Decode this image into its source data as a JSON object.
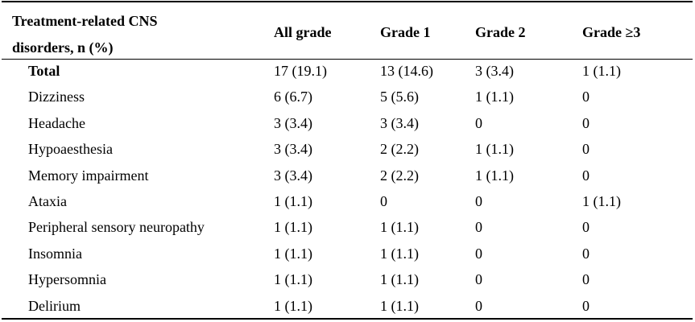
{
  "table": {
    "header": [
      "Treatment-related CNS disorders, n (%)",
      "All grade",
      "Grade 1",
      "Grade 2",
      "Grade ≥3"
    ],
    "rows": [
      [
        "Total",
        "17 (19.1)",
        "13 (14.6)",
        "3 (3.4)",
        "1 (1.1)"
      ],
      [
        "Dizziness",
        "6 (6.7)",
        "5 (5.6)",
        "1 (1.1)",
        "0"
      ],
      [
        "Headache",
        "3 (3.4)",
        "3 (3.4)",
        "0",
        "0"
      ],
      [
        "Hypoaesthesia",
        "3 (3.4)",
        "2 (2.2)",
        "1 (1.1)",
        "0"
      ],
      [
        "Memory impairment",
        "3 (3.4)",
        "2 (2.2)",
        "1 (1.1)",
        "0"
      ],
      [
        "Ataxia",
        "1 (1.1)",
        "0",
        "0",
        "1 (1.1)"
      ],
      [
        "Peripheral sensory neuropathy",
        "1 (1.1)",
        "1 (1.1)",
        "0",
        "0"
      ],
      [
        "Insomnia",
        "1 (1.1)",
        "1 (1.1)",
        "0",
        "0"
      ],
      [
        "Hypersomnia",
        "1 (1.1)",
        "1 (1.1)",
        "0",
        "0"
      ],
      [
        "Delirium",
        "1 (1.1)",
        "1 (1.1)",
        "0",
        "0"
      ]
    ]
  }
}
